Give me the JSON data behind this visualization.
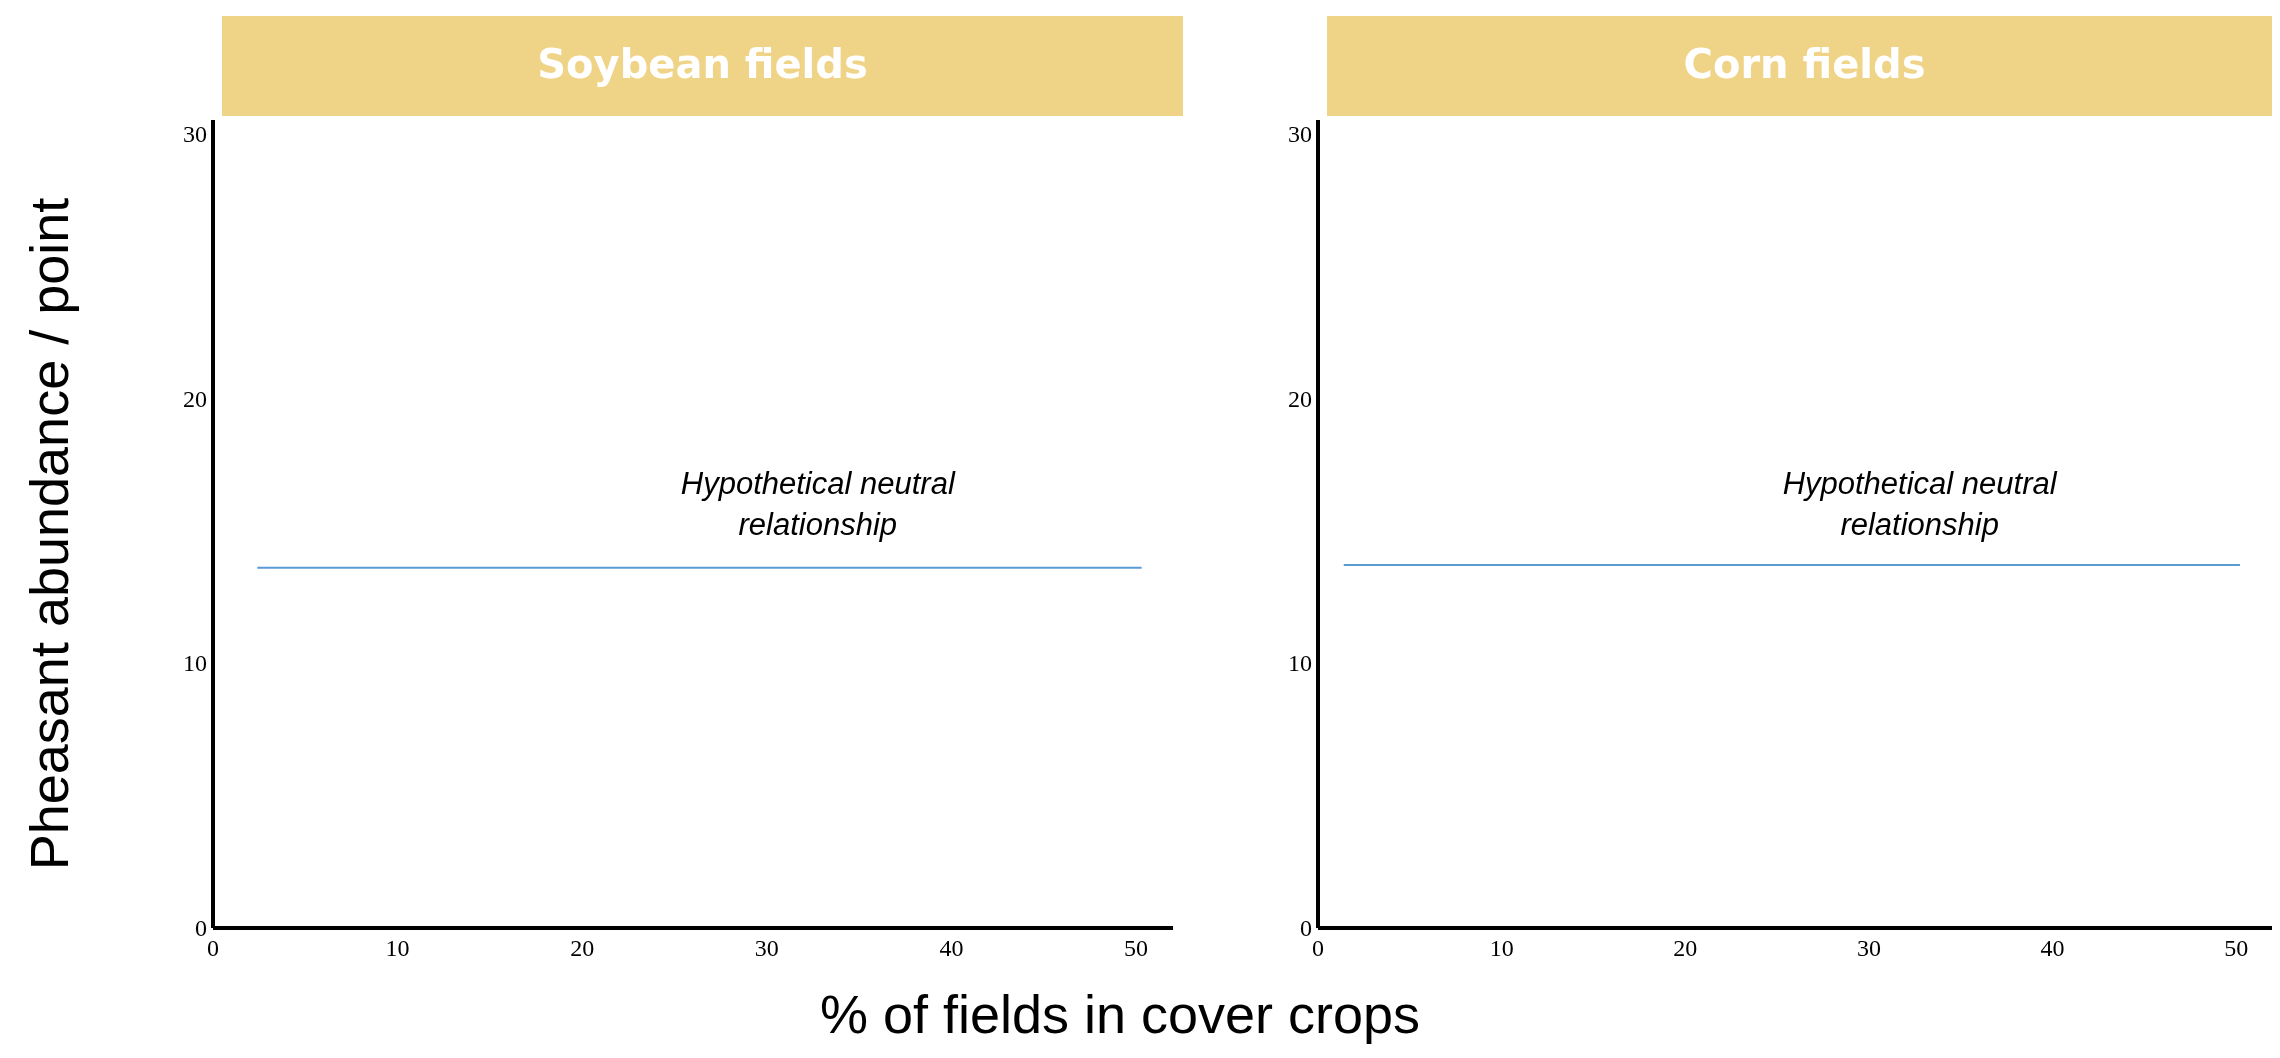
{
  "chart_data": [
    {
      "type": "line",
      "title": "Soybean fields",
      "ylabel": "Pheasant abundance / point",
      "xlabel": "% of fields in cover crops",
      "xlim": [
        0,
        52
      ],
      "ylim": [
        0,
        30.5
      ],
      "xticks": [
        0,
        10,
        20,
        30,
        40,
        50
      ],
      "yticks": [
        0,
        10,
        20,
        30
      ],
      "grid": false,
      "marker": "none",
      "line_style": "solid",
      "series": [
        {
          "color": "#5b9bd5",
          "x": [
            2.4,
            50.3
          ],
          "values": [
            13.6,
            13.6
          ]
        }
      ],
      "annotations": [
        "Hypothetical neutral relationship"
      ]
    },
    {
      "type": "line",
      "title": "Corn fields",
      "xlim": [
        0,
        52
      ],
      "ylim": [
        0,
        30.5
      ],
      "xticks": [
        0,
        10,
        20,
        30,
        40,
        50
      ],
      "yticks": [
        0,
        10,
        20,
        30
      ],
      "grid": false,
      "marker": "none",
      "line_style": "solid",
      "series": [
        {
          "color": "#5b9bd5",
          "x": [
            1.4,
            50.2
          ],
          "values": [
            13.7,
            13.7
          ]
        }
      ],
      "annotations": [
        "Hypothetical neutral relationship"
      ]
    }
  ]
}
